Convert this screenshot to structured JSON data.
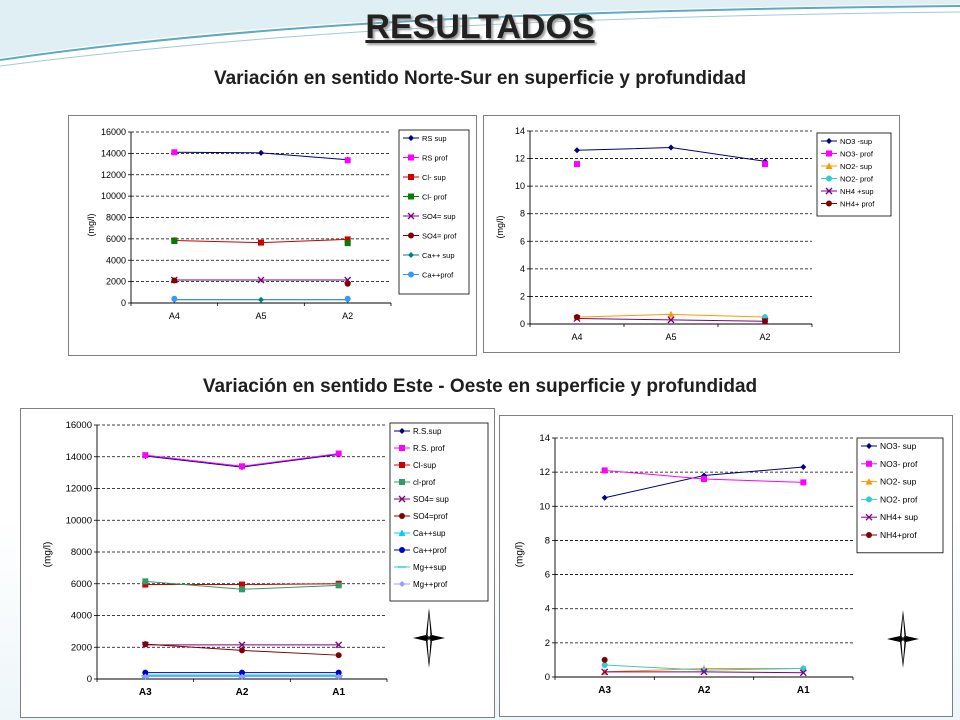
{
  "page": {
    "title": "RESULTADOS",
    "subtitle_ns": "Variación en sentido Norte-Sur en superficie y profundidad",
    "subtitle_eo": "Variación en sentido Este - Oeste en superficie y profundidad"
  },
  "chart_data": [
    {
      "id": "ns-main",
      "type": "line",
      "ylabel": "(mg/l)",
      "categories": [
        "A4",
        "A5",
        "A2"
      ],
      "ylim": [
        0,
        16000
      ],
      "yticks": [
        0,
        2000,
        4000,
        6000,
        8000,
        10000,
        12000,
        14000,
        16000
      ],
      "grid": true,
      "legend": "right",
      "series": [
        {
          "name": "RS sup",
          "color": "#000080",
          "marker": "diamond",
          "values": [
            14100,
            14050,
            13400
          ]
        },
        {
          "name": "RS prof",
          "color": "#ff00ff",
          "marker": "square",
          "values": [
            14100,
            null,
            13350
          ]
        },
        {
          "name": "Cl- sup",
          "color": "#cc0000",
          "marker": "square",
          "values": [
            5850,
            5650,
            5950
          ]
        },
        {
          "name": "Cl- prof",
          "color": "#008000",
          "marker": "square",
          "values": [
            5800,
            null,
            5600
          ]
        },
        {
          "name": "SO4= sup",
          "color": "#7f007f",
          "marker": "x",
          "values": [
            2150,
            2150,
            2150
          ]
        },
        {
          "name": "SO4= prof",
          "color": "#800000",
          "marker": "circle",
          "values": [
            2100,
            null,
            1800
          ]
        },
        {
          "name": "Ca++ sup",
          "color": "#008080",
          "marker": "diamond",
          "values": [
            300,
            300,
            300
          ]
        },
        {
          "name": "Ca++prof",
          "color": "#3399ff",
          "marker": "circle",
          "values": [
            400,
            null,
            400
          ]
        }
      ]
    },
    {
      "id": "ns-minor",
      "type": "line",
      "ylabel": "(mg/l)",
      "categories": [
        "A4",
        "A5",
        "A2"
      ],
      "ylim": [
        0,
        14
      ],
      "yticks": [
        0,
        2,
        4,
        6,
        8,
        10,
        12,
        14
      ],
      "grid": true,
      "legend": "right",
      "series": [
        {
          "name": "NO3 -sup",
          "color": "#000080",
          "marker": "diamond",
          "values": [
            12.6,
            12.8,
            11.8
          ]
        },
        {
          "name": "NO3- prof",
          "color": "#ff00ff",
          "marker": "square",
          "values": [
            11.6,
            null,
            11.6
          ]
        },
        {
          "name": "NO2- sup",
          "color": "#ff9900",
          "marker": "triangle",
          "values": [
            0.5,
            0.7,
            0.5
          ]
        },
        {
          "name": "NO2- prof",
          "color": "#33cccc",
          "marker": "circle",
          "values": [
            0.5,
            null,
            0.5
          ]
        },
        {
          "name": "NH4 +sup",
          "color": "#7f007f",
          "marker": "x",
          "values": [
            0.4,
            0.3,
            0.2
          ]
        },
        {
          "name": "NH4+ prof",
          "color": "#800000",
          "marker": "circle",
          "values": [
            0.5,
            null,
            0.2
          ]
        }
      ]
    },
    {
      "id": "eo-main",
      "type": "line",
      "ylabel": "(mg/l)",
      "categories": [
        "A3",
        "A2",
        "A1"
      ],
      "ylim": [
        0,
        16000
      ],
      "yticks": [
        0,
        2000,
        4000,
        6000,
        8000,
        10000,
        12000,
        14000,
        16000
      ],
      "grid": true,
      "legend": "right",
      "series": [
        {
          "name": "R.S.sup",
          "color": "#000080",
          "marker": "diamond",
          "values": [
            14050,
            13350,
            14150
          ]
        },
        {
          "name": "R.S. prof",
          "color": "#ff00ff",
          "marker": "square",
          "values": [
            14100,
            13400,
            14200
          ]
        },
        {
          "name": "Cl-sup",
          "color": "#cc0000",
          "marker": "square",
          "values": [
            5950,
            5950,
            6000
          ]
        },
        {
          "name": "cl-prof",
          "color": "#339966",
          "marker": "square",
          "values": [
            6150,
            5650,
            5900
          ]
        },
        {
          "name": "SO4= sup",
          "color": "#7f007f",
          "marker": "x",
          "values": [
            2150,
            2150,
            2150
          ]
        },
        {
          "name": "SO4=prof",
          "color": "#800000",
          "marker": "circle",
          "values": [
            2200,
            1800,
            1500
          ]
        },
        {
          "name": "Ca++sup",
          "color": "#00ccff",
          "marker": "triangle",
          "values": [
            250,
            250,
            250
          ]
        },
        {
          "name": "Ca++prof",
          "color": "#0000cc",
          "marker": "circle",
          "values": [
            400,
            400,
            400
          ]
        },
        {
          "name": "Mg++sup",
          "color": "#33cccc",
          "marker": "dash",
          "values": [
            200,
            200,
            200
          ]
        },
        {
          "name": "Mg++prof",
          "color": "#9999ff",
          "marker": "diamond",
          "values": [
            150,
            150,
            150
          ]
        }
      ]
    },
    {
      "id": "eo-minor",
      "type": "line",
      "ylabel": "(mg/l)",
      "categories": [
        "A3",
        "A2",
        "A1"
      ],
      "ylim": [
        0,
        14
      ],
      "yticks": [
        0,
        2,
        4,
        6,
        8,
        10,
        12,
        14
      ],
      "grid": true,
      "legend": "right",
      "series": [
        {
          "name": "NO3- sup",
          "color": "#000080",
          "marker": "diamond",
          "values": [
            10.5,
            11.8,
            12.3
          ]
        },
        {
          "name": "NO3- prof",
          "color": "#ff00ff",
          "marker": "square",
          "values": [
            12.1,
            11.6,
            11.4
          ]
        },
        {
          "name": "NO2- sup",
          "color": "#ff9900",
          "marker": "triangle",
          "values": [
            0.3,
            0.5,
            0.5
          ]
        },
        {
          "name": "NO2- prof",
          "color": "#33cccc",
          "marker": "circle",
          "values": [
            0.7,
            0.4,
            0.5
          ]
        },
        {
          "name": "NH4+ sup",
          "color": "#7f007f",
          "marker": "x",
          "values": [
            0.3,
            0.3,
            0.25
          ]
        },
        {
          "name": "NH4+prof",
          "color": "#800000",
          "marker": "circle",
          "values": [
            1.0,
            null,
            null
          ]
        }
      ]
    }
  ]
}
